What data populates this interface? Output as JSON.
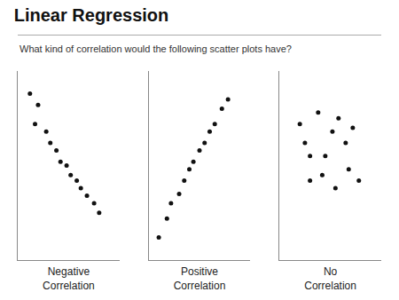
{
  "chart_data": [
    {
      "type": "scatter",
      "title": "Linear Regression",
      "subtitle": "What kind of correlation would the following scatter plots have?",
      "xlabel": "Negative\nCorrelation",
      "x": [
        0.12,
        0.2,
        0.17,
        0.28,
        0.32,
        0.38,
        0.42,
        0.48,
        0.52,
        0.58,
        0.62,
        0.68,
        0.75,
        0.8
      ],
      "values": [
        0.88,
        0.82,
        0.72,
        0.68,
        0.62,
        0.58,
        0.52,
        0.5,
        0.45,
        0.42,
        0.38,
        0.34,
        0.3,
        0.25
      ],
      "color": "#111111",
      "marker": "circle",
      "xlim": [
        0,
        1
      ],
      "ylim": [
        0,
        1
      ],
      "xticks": [],
      "yticks": [],
      "grid": false,
      "tick_labels": false
    },
    {
      "type": "scatter",
      "xlabel": "Positive\nCorrelation",
      "x": [
        0.1,
        0.18,
        0.22,
        0.3,
        0.35,
        0.4,
        0.44,
        0.5,
        0.55,
        0.6,
        0.65,
        0.72,
        0.78
      ],
      "values": [
        0.12,
        0.22,
        0.3,
        0.35,
        0.42,
        0.48,
        0.52,
        0.58,
        0.62,
        0.68,
        0.72,
        0.8,
        0.85
      ],
      "color": "#111111",
      "marker": "circle",
      "xlim": [
        0,
        1
      ],
      "ylim": [
        0,
        1
      ],
      "xticks": [],
      "yticks": [],
      "grid": false,
      "tick_labels": false
    },
    {
      "type": "scatter",
      "xlabel": "No\nCorrelation",
      "x": [
        0.2,
        0.3,
        0.25,
        0.38,
        0.45,
        0.52,
        0.58,
        0.65,
        0.72,
        0.3,
        0.42,
        0.55,
        0.68,
        0.78
      ],
      "values": [
        0.72,
        0.55,
        0.62,
        0.78,
        0.55,
        0.68,
        0.75,
        0.62,
        0.7,
        0.42,
        0.45,
        0.38,
        0.48,
        0.42
      ],
      "color": "#111111",
      "marker": "circle",
      "xlim": [
        0,
        1
      ],
      "ylim": [
        0,
        1
      ],
      "xticks": [],
      "yticks": [],
      "grid": false,
      "tick_labels": false
    }
  ]
}
